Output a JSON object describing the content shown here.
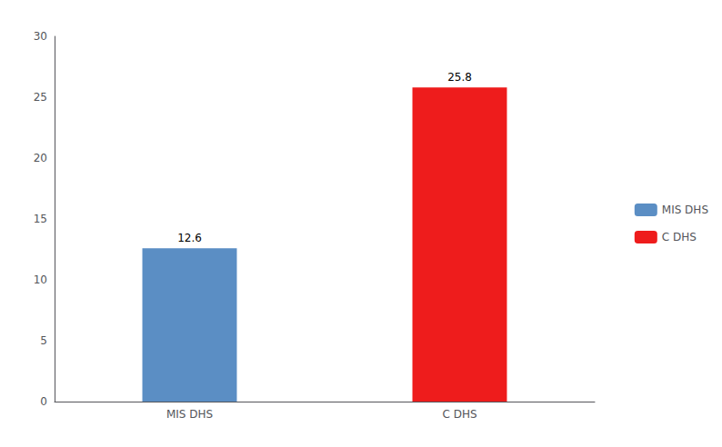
{
  "chart_data": {
    "type": "bar",
    "categories": [
      "MIS DHS",
      "C DHS"
    ],
    "values": [
      12.6,
      25.8
    ],
    "colors": [
      "#5b8ec4",
      "#ee1c1c"
    ],
    "ylim": [
      0,
      30
    ],
    "yticks": [
      0,
      5,
      10,
      15,
      20,
      25,
      30
    ],
    "grid": false,
    "legend": "right",
    "data_labels": true
  }
}
